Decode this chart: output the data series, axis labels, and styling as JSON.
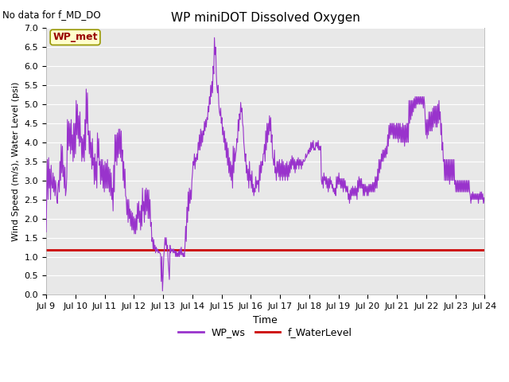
{
  "title": "WP miniDOT Dissolved Oxygen",
  "no_data_label": "No data for f_MD_DO",
  "xlabel": "Time",
  "ylabel": "Wind Speed (m/s), Water Level (psi)",
  "ylim": [
    0.0,
    7.0
  ],
  "yticks": [
    0.0,
    0.5,
    1.0,
    1.5,
    2.0,
    2.5,
    3.0,
    3.5,
    4.0,
    4.5,
    5.0,
    5.5,
    6.0,
    6.5,
    7.0
  ],
  "x_tick_labels": [
    "Jul 9",
    "Jul 10",
    "Jul 11",
    "Jul 12",
    "Jul 13",
    "Jul 14",
    "Jul 15",
    "Jul 16",
    "Jul 17",
    "Jul 18",
    "Jul 19",
    "Jul 20",
    "Jul 21",
    "Jul 22",
    "Jul 23",
    "Jul 24"
  ],
  "wp_ws_color": "#9933cc",
  "f_wl_color": "#cc0000",
  "f_wl_value": 1.17,
  "legend_label_ws": "WP_ws",
  "legend_label_wl": "f_WaterLevel",
  "legend_box_label": "WP_met",
  "legend_box_color": "#ffffcc",
  "legend_box_border": "#999900",
  "legend_box_text_color": "#990000",
  "bg_color": "#e8e8e8",
  "figwidth": 6.4,
  "figheight": 4.8,
  "dpi": 100,
  "wp_ws_data": [
    1.65,
    2.7,
    3.55,
    2.5,
    3.6,
    2.8,
    3.3,
    2.5,
    3.4,
    2.9,
    2.8,
    3.2,
    2.7,
    3.1,
    2.6,
    3.0,
    2.8,
    2.5,
    2.4,
    2.9,
    3.0,
    2.7,
    3.5,
    3.0,
    3.95,
    3.2,
    3.9,
    3.1,
    3.4,
    2.8,
    3.35,
    2.6,
    2.75,
    3.1,
    4.6,
    3.8,
    4.55,
    3.9,
    4.5,
    3.7,
    4.6,
    3.8,
    4.2,
    3.5,
    4.5,
    3.6,
    4.5,
    3.7,
    5.1,
    4.2,
    5.0,
    4.1,
    4.7,
    3.9,
    4.8,
    4.0,
    4.15,
    3.5,
    4.1,
    3.6,
    4.2,
    3.5,
    4.6,
    3.8,
    5.4,
    4.5,
    5.3,
    4.2,
    4.3,
    3.7,
    4.3,
    3.6,
    4.0,
    3.3,
    4.1,
    3.4,
    3.6,
    2.9,
    3.7,
    3.0,
    3.5,
    2.8,
    4.25,
    3.6,
    4.1,
    3.4,
    3.5,
    2.9,
    3.55,
    3.0,
    3.55,
    2.8,
    3.4,
    2.7,
    3.5,
    2.8,
    3.45,
    2.8,
    3.55,
    2.8,
    3.35,
    2.7,
    3.3,
    2.6,
    3.2,
    2.5,
    2.8,
    2.2,
    3.4,
    2.7,
    4.2,
    3.5,
    4.2,
    3.4,
    4.25,
    3.6,
    4.35,
    3.7,
    4.35,
    3.6,
    4.3,
    3.5,
    3.8,
    3.0,
    3.5,
    2.8,
    3.3,
    2.6,
    2.55,
    2.1,
    2.5,
    1.9,
    2.5,
    2.0,
    2.25,
    1.8,
    2.2,
    1.7,
    2.15,
    1.7,
    2.05,
    1.6,
    2.0,
    1.6,
    2.1,
    1.7,
    2.4,
    2.0,
    2.45,
    1.9,
    2.2,
    1.7,
    2.35,
    1.8,
    2.8,
    2.2,
    2.45,
    1.9,
    2.75,
    2.1,
    2.8,
    2.2,
    2.75,
    2.0,
    2.75,
    2.0,
    2.5,
    1.8,
    1.9,
    1.4,
    1.5,
    1.2,
    1.45,
    1.2,
    1.3,
    1.1,
    1.25,
    1.15,
    1.2,
    1.1,
    1.15,
    1.1,
    1.1,
    1.05,
    0.35,
    1.0,
    0.1,
    0.5,
    1.0,
    1.2,
    1.5,
    1.3,
    1.5,
    1.2,
    1.3,
    0.9,
    0.65,
    0.4,
    1.3,
    1.1,
    1.2,
    1.15,
    1.2,
    1.1,
    1.2,
    1.1,
    1.15,
    1.0,
    1.15,
    1.0,
    1.1,
    1.0,
    1.15,
    1.0,
    1.2,
    1.05,
    1.25,
    1.05,
    1.1,
    1.0,
    1.1,
    1.0,
    1.3,
    1.8,
    1.4,
    2.3,
    1.9,
    2.7,
    2.2,
    2.8,
    2.4,
    2.75,
    2.5,
    3.0,
    3.2,
    3.5,
    3.4,
    3.7,
    3.3,
    3.6,
    3.5,
    3.7,
    3.55,
    4.0,
    3.8,
    4.2,
    3.8,
    4.35,
    3.9,
    4.3,
    4.0,
    4.3,
    4.2,
    4.55,
    4.3,
    4.6,
    4.4,
    4.65,
    4.6,
    4.95,
    4.8,
    5.2,
    5.0,
    5.5,
    5.2,
    5.6,
    5.3,
    6.0,
    5.8,
    6.75,
    6.3,
    6.5,
    5.8,
    5.45,
    5.3,
    5.5,
    5.0,
    4.8,
    4.7,
    4.9,
    4.5,
    4.65,
    4.2,
    4.4,
    4.0,
    4.3,
    3.8,
    4.1,
    3.6,
    4.0,
    3.4,
    3.85,
    3.2,
    3.6,
    3.1,
    3.5,
    3.0,
    3.4,
    2.8,
    3.9,
    3.2,
    3.85,
    3.5,
    3.7,
    3.8,
    4.1,
    4.0,
    4.6,
    4.3,
    4.75,
    4.6,
    5.05,
    4.8,
    4.9,
    4.5,
    4.4,
    4.0,
    3.8,
    3.5,
    3.7,
    3.2,
    3.4,
    3.0,
    3.3,
    2.8,
    3.5,
    3.0,
    3.15,
    2.8,
    3.25,
    2.7,
    2.9,
    2.6,
    2.8,
    2.7,
    3.1,
    2.8,
    3.0,
    2.9,
    3.0,
    2.7,
    3.4,
    3.0,
    3.5,
    3.2,
    3.5,
    3.4,
    3.7,
    3.7,
    3.95,
    3.5,
    4.3,
    3.8,
    4.5,
    4.0,
    4.5,
    4.2,
    4.7,
    4.3,
    4.65,
    4.0,
    4.2,
    3.6,
    3.55,
    3.4,
    3.8,
    3.2,
    3.35,
    3.0,
    3.5,
    3.2,
    3.5,
    3.1,
    3.55,
    3.0,
    3.45,
    3.1,
    3.55,
    3.0,
    3.5,
    3.1,
    3.4,
    3.0,
    3.45,
    3.1,
    3.5,
    3.0,
    3.4,
    3.1,
    3.5,
    3.2,
    3.55,
    3.3,
    3.65,
    3.4,
    3.6,
    3.3,
    3.55,
    3.2,
    3.5,
    3.3,
    3.55,
    3.4,
    3.6,
    3.3,
    3.55,
    3.4,
    3.55,
    3.3,
    3.5,
    3.4,
    3.55,
    3.5,
    3.5,
    3.55,
    3.7,
    3.6,
    3.65,
    3.7,
    3.8,
    3.7,
    3.85,
    3.75,
    4.0,
    3.8,
    4.0,
    3.85,
    4.05,
    3.8,
    3.85,
    3.8,
    4.0,
    3.9,
    4.0,
    3.85,
    4.05,
    3.8,
    3.9,
    3.8,
    3.9,
    3.0,
    2.9,
    3.1,
    2.8,
    3.2,
    3.0,
    3.1,
    2.9,
    3.1,
    2.8,
    3.05,
    2.7,
    3.05,
    2.8,
    3.1,
    2.9,
    3.0,
    2.8,
    2.9,
    2.7,
    2.8,
    2.65,
    2.8,
    2.6,
    3.1,
    2.8,
    3.1,
    2.9,
    3.2,
    2.9,
    3.05,
    2.8,
    3.05,
    2.8,
    3.05,
    2.7,
    3.05,
    2.8,
    3.0,
    2.7,
    2.85,
    2.7,
    2.85,
    2.5,
    2.65,
    2.4,
    2.75,
    2.5,
    2.8,
    2.6,
    2.85,
    2.6,
    2.8,
    2.6,
    2.85,
    2.6,
    2.8,
    2.5,
    3.0,
    2.7,
    3.1,
    2.8,
    3.05,
    2.8,
    3.05,
    2.8,
    2.9,
    2.6,
    2.9,
    2.6,
    2.9,
    2.7,
    2.85,
    2.6,
    2.85,
    2.6,
    2.9,
    2.7,
    2.9,
    2.7,
    2.9,
    2.7,
    2.95,
    2.7,
    2.95,
    2.7,
    3.1,
    2.8,
    3.1,
    2.8,
    3.3,
    3.0,
    3.55,
    3.2,
    3.55,
    3.3,
    3.7,
    3.5,
    3.8,
    3.5,
    3.8,
    3.6,
    3.85,
    3.6,
    3.9,
    3.7,
    4.2,
    3.9,
    4.45,
    4.1,
    4.5,
    4.2,
    4.5,
    4.2,
    4.5,
    4.1,
    4.5,
    4.1,
    4.45,
    4.1,
    4.5,
    4.1,
    4.5,
    4.0,
    4.5,
    4.1,
    4.5,
    4.0,
    4.4,
    4.0,
    4.5,
    4.0,
    4.45,
    3.9,
    4.45,
    4.0,
    4.5,
    4.0,
    4.5,
    4.0,
    5.1,
    4.5,
    5.1,
    4.6,
    5.1,
    4.7,
    5.1,
    4.8,
    5.15,
    4.9,
    5.2,
    4.9,
    5.2,
    5.0,
    5.2,
    5.0,
    5.2,
    5.0,
    5.2,
    5.0,
    5.2,
    5.0,
    5.2,
    4.9,
    5.2,
    5.0,
    4.6,
    4.2,
    4.6,
    4.1,
    4.6,
    4.2,
    4.8,
    4.3,
    4.8,
    4.3,
    4.8,
    4.3,
    4.9,
    4.4,
    4.95,
    4.5,
    4.95,
    4.4,
    4.95,
    4.4,
    5.0,
    4.5,
    5.1,
    4.6,
    4.8,
    4.2,
    4.5,
    3.8,
    4.0,
    3.5,
    3.55,
    3.0,
    3.55,
    3.0,
    3.55,
    3.0,
    3.55,
    3.0,
    3.55,
    2.9,
    3.55,
    3.0,
    3.55,
    3.0,
    3.55,
    3.0,
    3.55,
    2.9,
    3.0,
    2.7,
    3.0,
    2.7,
    3.0,
    2.7,
    3.0,
    2.7,
    3.0,
    2.7,
    3.0,
    2.7,
    3.0,
    2.7,
    3.0,
    2.7,
    3.0,
    2.7,
    3.0,
    2.7,
    3.0,
    2.7,
    3.0,
    2.7,
    2.6,
    2.4,
    2.65,
    2.5,
    2.7,
    2.5,
    2.65,
    2.5,
    2.65,
    2.5,
    2.65,
    2.5,
    2.65,
    2.4,
    2.65,
    2.5,
    2.7,
    2.5,
    2.7,
    2.5,
    2.65,
    2.4,
    2.55,
    2.4
  ]
}
